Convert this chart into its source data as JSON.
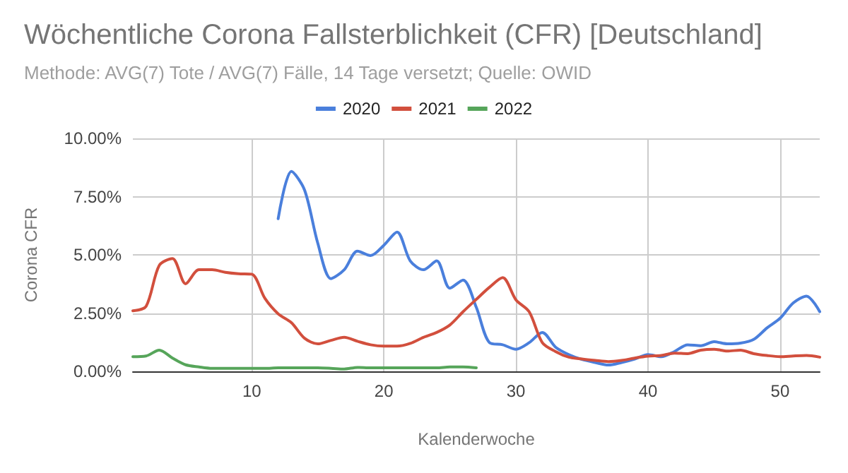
{
  "chart_data": {
    "type": "line",
    "title": "Wöchentliche Corona Fallsterblichkeit (CFR) [Deutschland]",
    "subtitle": "Methode: AVG(7) Tote / AVG(7) Fälle, 14 Tage versetzt; Quelle: OWID",
    "xlabel": "Kalenderwoche",
    "ylabel": "Corona CFR",
    "x": [
      1,
      2,
      3,
      4,
      5,
      6,
      7,
      8,
      9,
      10,
      11,
      12,
      13,
      14,
      15,
      16,
      17,
      18,
      19,
      20,
      21,
      22,
      23,
      24,
      25,
      26,
      27,
      28,
      29,
      30,
      31,
      32,
      33,
      34,
      35,
      36,
      37,
      38,
      39,
      40,
      41,
      42,
      43,
      44,
      45,
      46,
      47,
      48,
      49,
      50,
      51,
      52,
      53
    ],
    "series": [
      {
        "name": "2020",
        "color": "#4a7fdc",
        "values": [
          null,
          null,
          null,
          null,
          null,
          null,
          null,
          null,
          null,
          null,
          null,
          6.55,
          8.58,
          7.78,
          5.5,
          3.98,
          4.36,
          5.16,
          4.97,
          5.41,
          5.98,
          4.74,
          4.36,
          4.74,
          3.57,
          3.92,
          2.75,
          1.23,
          1.14,
          0.95,
          1.23,
          1.67,
          1.04,
          0.72,
          0.51,
          0.38,
          0.27,
          0.38,
          0.53,
          0.72,
          0.63,
          0.85,
          1.14,
          1.1,
          1.27,
          1.18,
          1.21,
          1.37,
          1.86,
          2.28,
          2.94,
          3.23,
          2.56
        ]
      },
      {
        "name": "2021",
        "color": "#d24f3d",
        "values": [
          2.6,
          2.79,
          4.55,
          4.84,
          3.76,
          4.36,
          4.36,
          4.25,
          4.19,
          4.17,
          3.13,
          2.47,
          2.09,
          1.42,
          1.18,
          1.33,
          1.46,
          1.29,
          1.14,
          1.08,
          1.08,
          1.2,
          1.46,
          1.67,
          1.99,
          2.56,
          3.09,
          3.61,
          4.02,
          3.07,
          2.56,
          1.23,
          0.85,
          0.61,
          0.53,
          0.47,
          0.42,
          0.47,
          0.57,
          0.65,
          0.68,
          0.78,
          0.76,
          0.91,
          0.95,
          0.87,
          0.91,
          0.76,
          0.68,
          0.63,
          0.66,
          0.68,
          0.61
        ]
      },
      {
        "name": "2022",
        "color": "#56a55a",
        "values": [
          0.63,
          0.66,
          0.91,
          0.57,
          0.28,
          0.19,
          0.13,
          0.13,
          0.13,
          0.13,
          0.13,
          0.15,
          0.15,
          0.15,
          0.15,
          0.13,
          0.1,
          0.17,
          0.15,
          0.15,
          0.15,
          0.15,
          0.15,
          0.15,
          0.19,
          0.19,
          0.15,
          null,
          null,
          null,
          null,
          null,
          null,
          null,
          null,
          null,
          null,
          null,
          null,
          null,
          null,
          null,
          null,
          null,
          null,
          null,
          null,
          null,
          null,
          null,
          null,
          null,
          null
        ]
      }
    ],
    "xlim": [
      1,
      53
    ],
    "xticks": [
      10,
      20,
      30,
      40,
      50
    ],
    "ylim": [
      0,
      10
    ],
    "yticks": [
      {
        "value": 0,
        "label": "0.00%"
      },
      {
        "value": 2.5,
        "label": "2.50%"
      },
      {
        "value": 5,
        "label": "5.00%"
      },
      {
        "value": 7.5,
        "label": "7.50%"
      },
      {
        "value": 10,
        "label": "10.00%"
      }
    ],
    "grid": true,
    "legend": "top",
    "marker": "none",
    "line_style": "solid"
  }
}
